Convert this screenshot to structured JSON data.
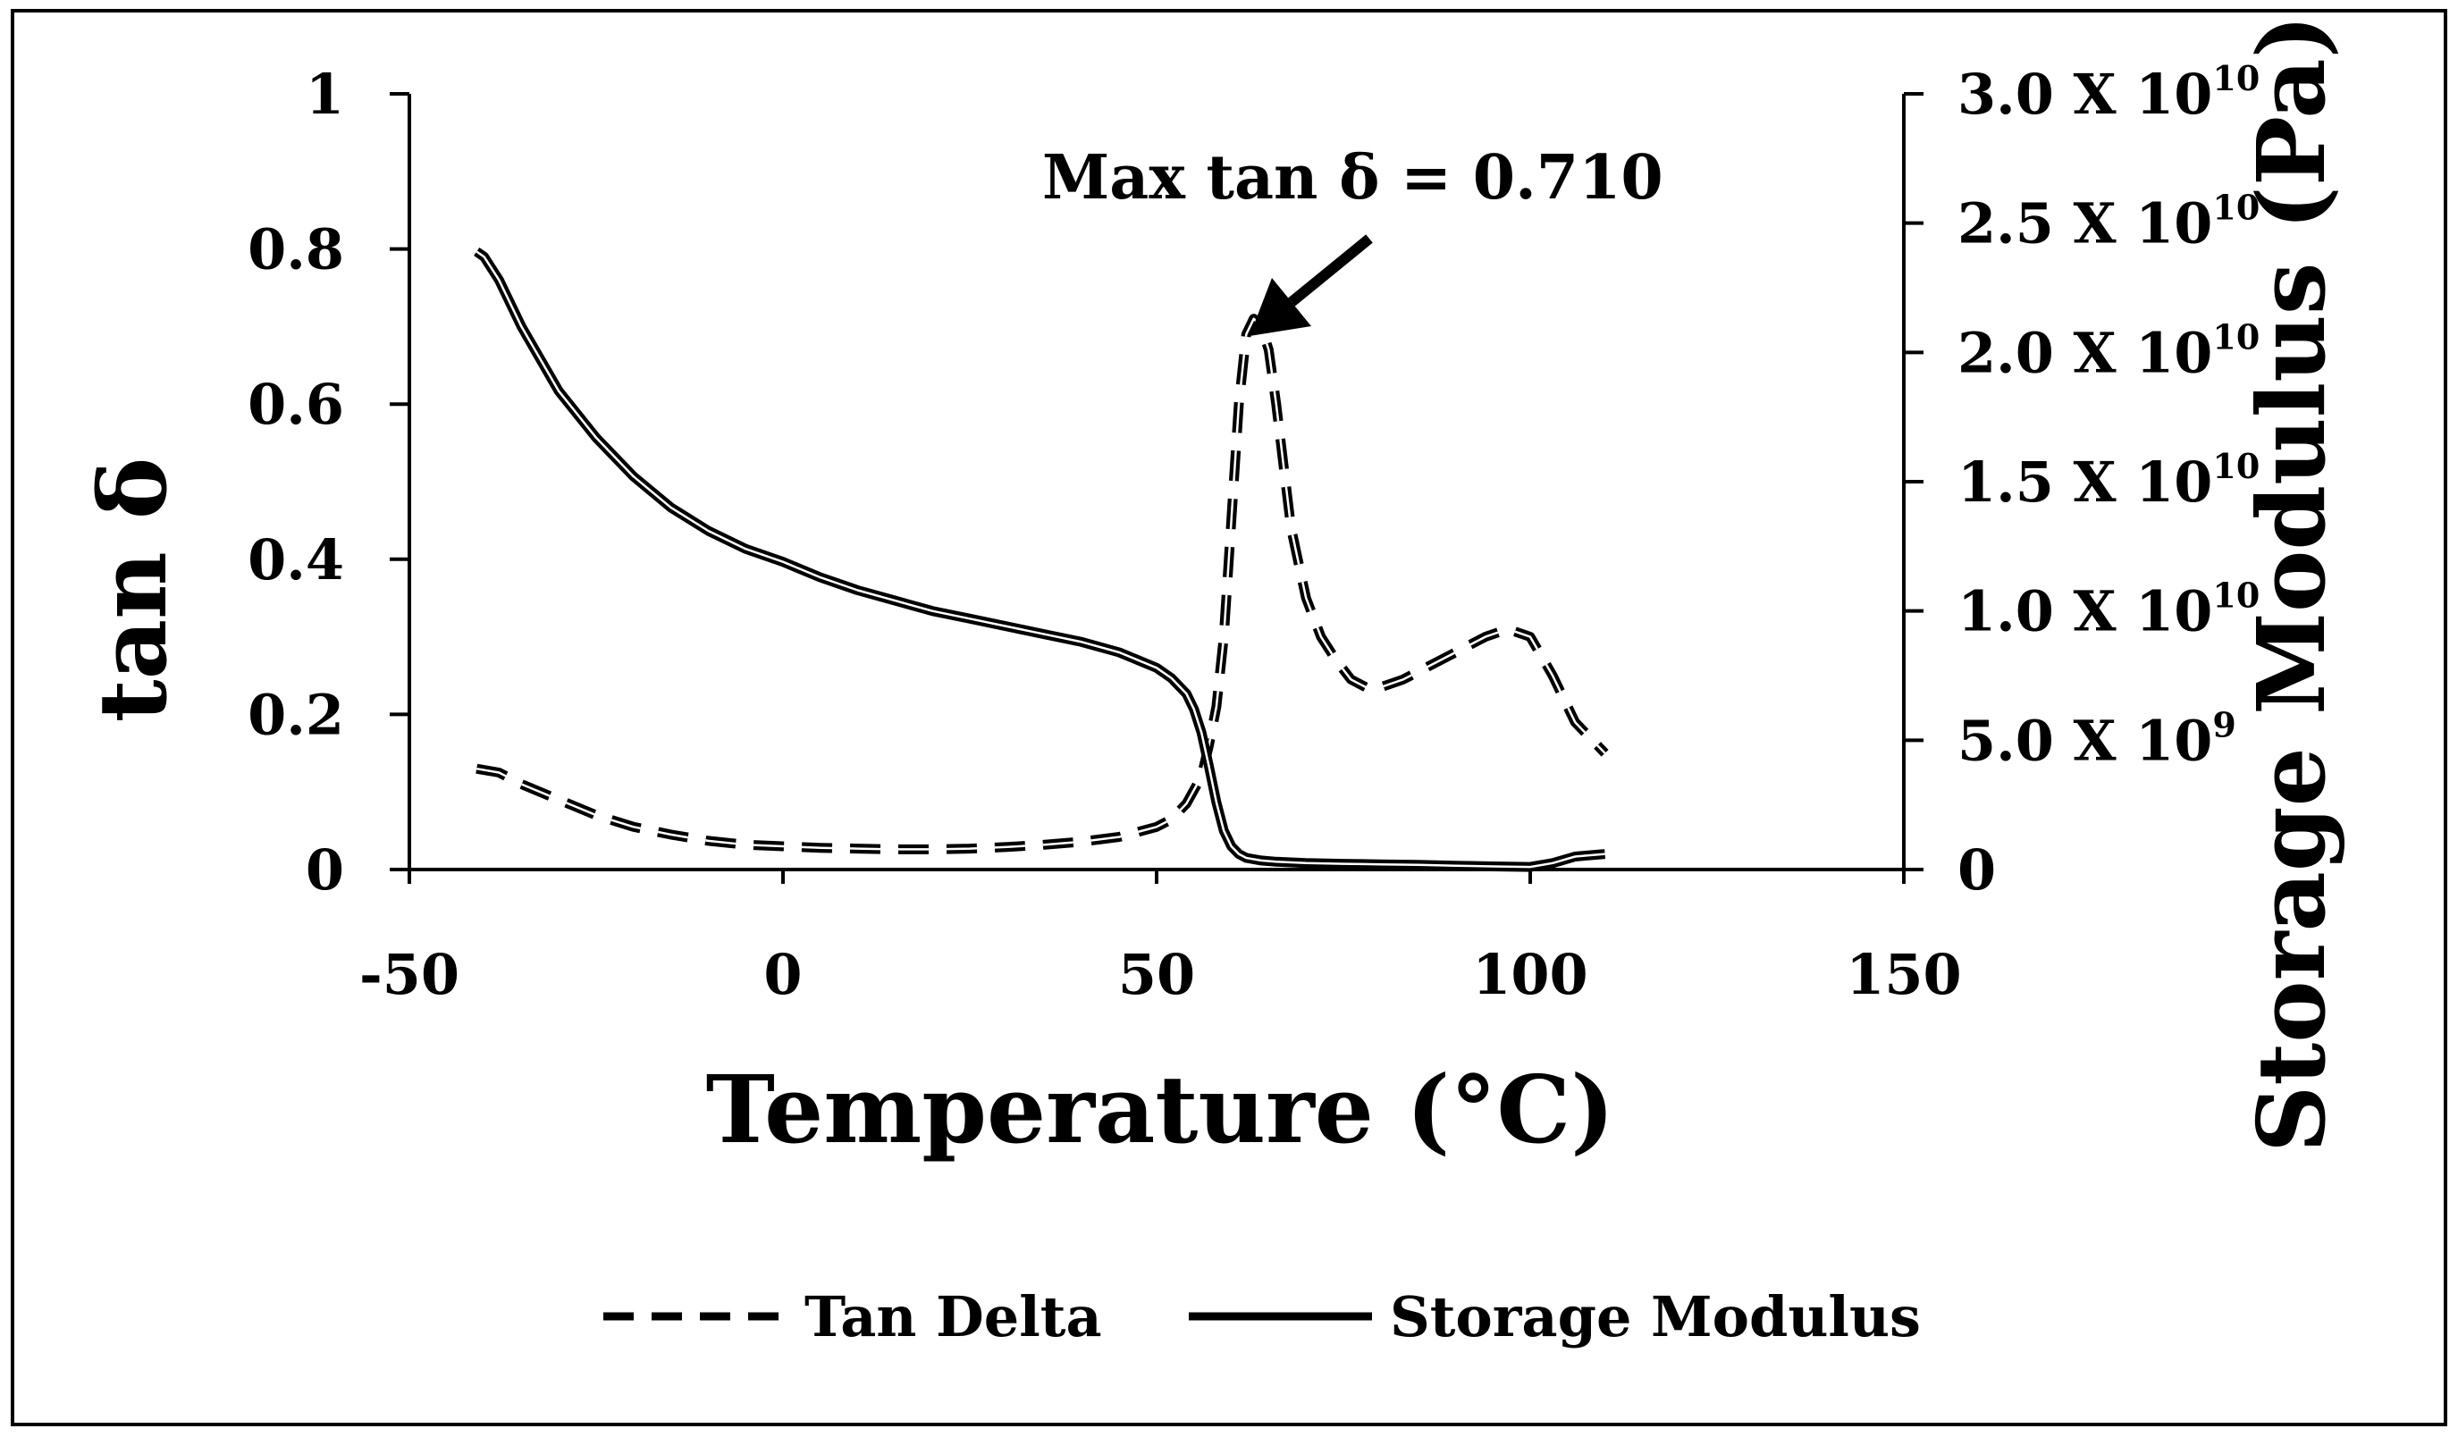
{
  "chart_data": {
    "type": "line",
    "xlabel": "Temperature (°C)",
    "ylabel": "tan δ",
    "y2label": "Storage Modulus (Pa)",
    "xlim": [
      -50,
      150
    ],
    "ylim": [
      0,
      1
    ],
    "y2lim": [
      0,
      30000000000
    ],
    "xticks": [
      -50,
      0,
      50,
      100,
      150
    ],
    "xtick_labels": [
      "-50",
      "0",
      "50",
      "100",
      "150"
    ],
    "yticks": [
      0,
      0.2,
      0.4,
      0.6,
      0.8,
      1
    ],
    "ytick_labels": [
      "0",
      "0.2",
      "0.4",
      "0.6",
      "0.8",
      "1"
    ],
    "y2ticks": [
      0,
      5000000000,
      10000000000,
      15000000000,
      20000000000,
      25000000000,
      30000000000
    ],
    "y2tick_labels": [
      {
        "base": "0",
        "exp": ""
      },
      {
        "base": "5.0 X 10",
        "exp": "9"
      },
      {
        "base": "1.0 X 10",
        "exp": "10"
      },
      {
        "base": "1.5 X 10",
        "exp": "10"
      },
      {
        "base": "2.0 X 10",
        "exp": "10"
      },
      {
        "base": "2.5 X 10",
        "exp": "10"
      },
      {
        "base": "3.0 X 10",
        "exp": "10"
      }
    ],
    "grid": false,
    "legend_position": "bottom",
    "annotation": {
      "text": "Max tan δ = 0.710",
      "x": 62,
      "y": 0.71
    },
    "series": [
      {
        "name": "Tan Delta",
        "axis": "left",
        "style": "dashed",
        "x": [
          -41,
          -38,
          -35,
          -30,
          -25,
          -20,
          -15,
          -10,
          -5,
          0,
          5,
          10,
          15,
          20,
          25,
          30,
          35,
          40,
          45,
          50,
          52,
          54,
          56,
          57,
          58,
          59,
          60,
          61,
          62,
          63,
          64,
          65,
          66,
          67,
          68,
          70,
          72,
          74,
          76,
          78,
          80,
          83,
          86,
          90,
          94,
          97,
          100,
          103,
          106,
          110
        ],
        "y": [
          0.13,
          0.125,
          0.11,
          0.09,
          0.07,
          0.055,
          0.045,
          0.037,
          0.032,
          0.03,
          0.028,
          0.027,
          0.026,
          0.026,
          0.027,
          0.029,
          0.032,
          0.036,
          0.042,
          0.055,
          0.065,
          0.085,
          0.12,
          0.16,
          0.21,
          0.3,
          0.45,
          0.6,
          0.69,
          0.71,
          0.7,
          0.67,
          0.6,
          0.52,
          0.44,
          0.35,
          0.3,
          0.27,
          0.245,
          0.235,
          0.235,
          0.245,
          0.26,
          0.28,
          0.3,
          0.31,
          0.3,
          0.25,
          0.19,
          0.15
        ]
      },
      {
        "name": "Storage Modulus",
        "axis": "right",
        "style": "solid",
        "x": [
          -41,
          -40,
          -38,
          -35,
          -30,
          -25,
          -20,
          -15,
          -10,
          -5,
          0,
          5,
          10,
          15,
          20,
          25,
          30,
          35,
          40,
          45,
          50,
          52,
          54,
          55,
          56,
          57,
          58,
          59,
          60,
          61,
          62,
          64,
          66,
          70,
          75,
          80,
          85,
          90,
          95,
          100,
          103,
          106,
          110
        ],
        "y": [
          23900000000,
          23700000000,
          22800000000,
          21000000000,
          18500000000,
          16700000000,
          15200000000,
          14000000000,
          13100000000,
          12400000000,
          11900000000,
          11300000000,
          10800000000,
          10400000000,
          10000000000,
          9700000000,
          9400000000,
          9100000000,
          8800000000,
          8400000000,
          7800000000,
          7400000000,
          6800000000,
          6200000000,
          5300000000,
          4000000000,
          2600000000,
          1500000000,
          900000000,
          600000000,
          450000000,
          350000000,
          300000000,
          250000000,
          220000000,
          200000000,
          180000000,
          150000000,
          120000000,
          100000000,
          250000000,
          500000000,
          600000000
        ]
      }
    ]
  }
}
